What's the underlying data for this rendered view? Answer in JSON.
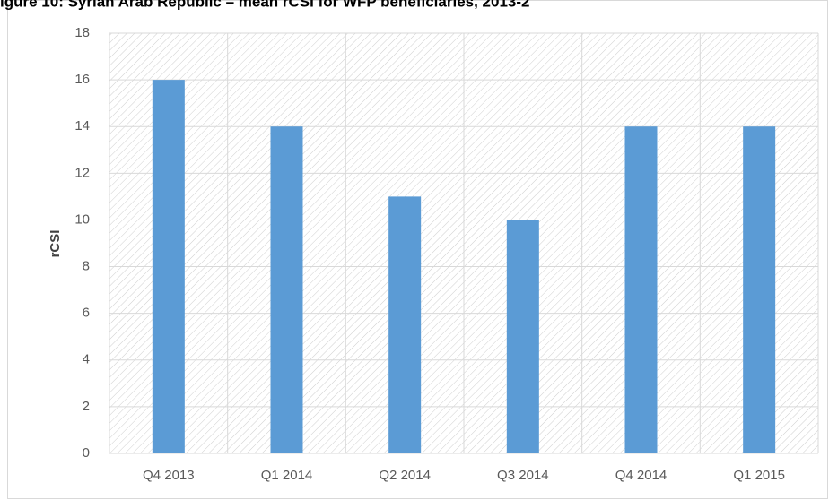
{
  "chart_data": {
    "type": "bar",
    "title": "igure 10: Syrian Arab Republic – mean rCSI for WFP beneficiaries, 2013-2",
    "y_label": "rCSI",
    "categories": [
      "Q4 2013",
      "Q1 2014",
      "Q2 2014",
      "Q3 2014",
      "Q4 2014",
      "Q1 2015"
    ],
    "values": [
      16,
      14,
      11,
      10,
      14,
      14
    ],
    "color": "#5b9bd5",
    "ylim": [
      0,
      18
    ],
    "yticks": [
      0,
      2,
      4,
      6,
      8,
      10,
      12,
      14,
      16,
      18
    ],
    "grid": true
  }
}
